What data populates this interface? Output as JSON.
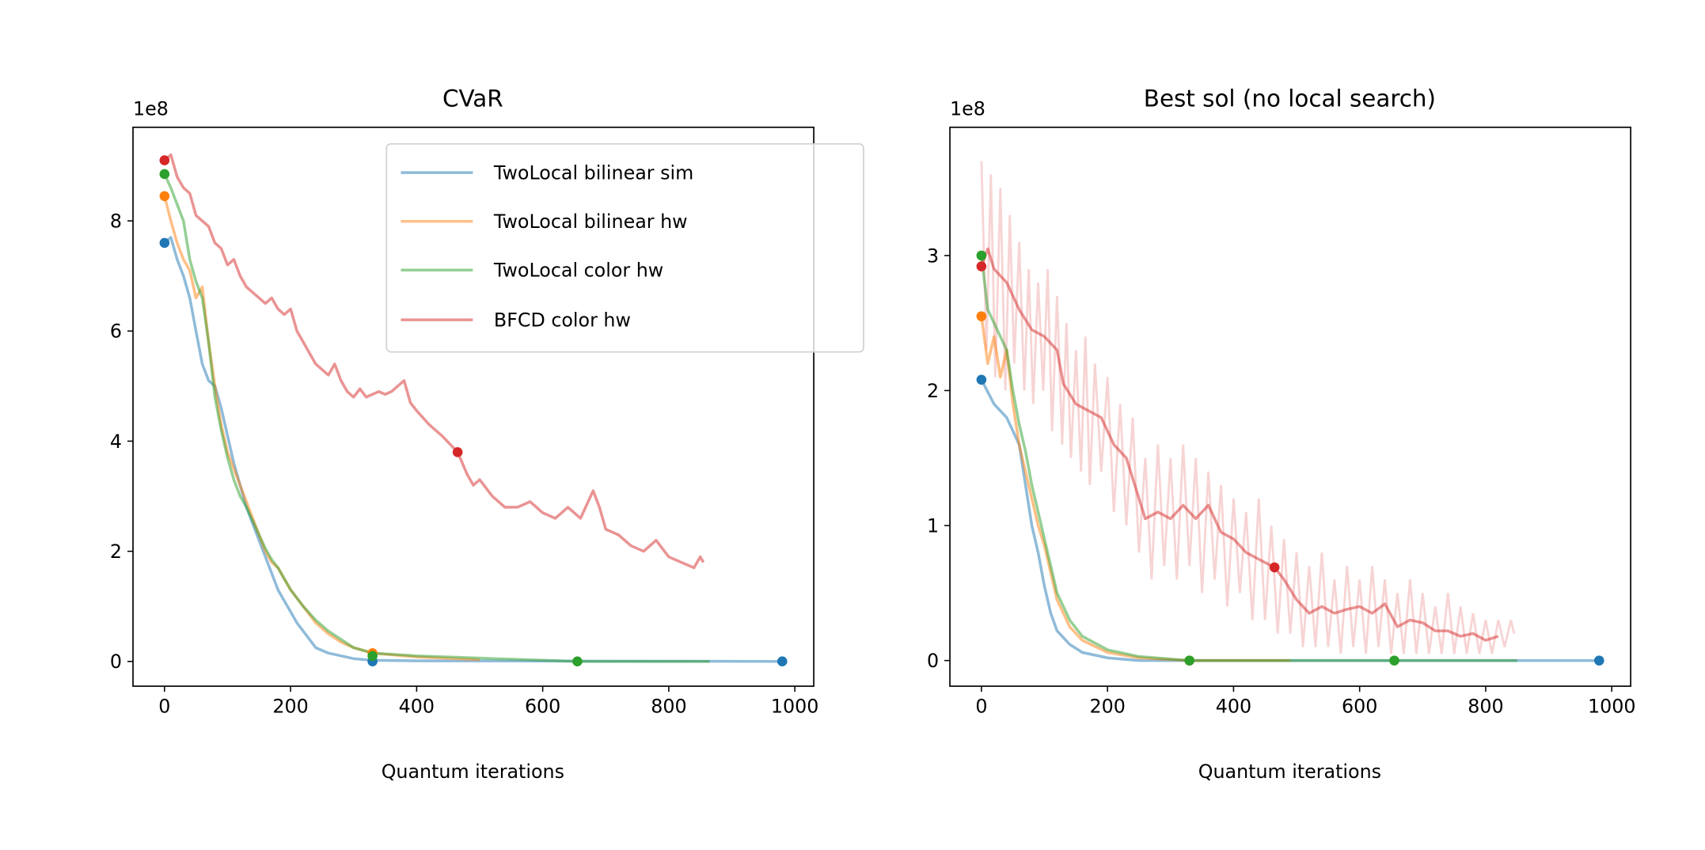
{
  "chart_data": [
    {
      "type": "line",
      "title": "CVaR",
      "xlabel": "Quantum iterations",
      "ylabel": "",
      "y_offset_label": "1e8",
      "xlim": [
        -50,
        1030
      ],
      "ylim": [
        -0.45,
        9.7
      ],
      "xticks": [
        0,
        200,
        400,
        600,
        800,
        1000
      ],
      "yticks": [
        0,
        2,
        4,
        6,
        8
      ],
      "grid": false,
      "legend": {
        "placement": "top-right",
        "entries": [
          "TwoLocal bilinear sim",
          "TwoLocal bilinear hw",
          "TwoLocal color hw",
          "BFCD color hw"
        ]
      },
      "series": [
        {
          "name": "TwoLocal bilinear sim",
          "color": "#1f77b4",
          "x": [
            0,
            10,
            20,
            30,
            40,
            50,
            60,
            70,
            80,
            90,
            100,
            110,
            120,
            130,
            140,
            150,
            160,
            170,
            180,
            190,
            200,
            210,
            220,
            230,
            240,
            250,
            260,
            280,
            300,
            330,
            400,
            980
          ],
          "y": [
            7.6,
            7.7,
            7.3,
            7.0,
            6.6,
            6.0,
            5.4,
            5.1,
            5.0,
            4.6,
            4.1,
            3.6,
            3.2,
            2.8,
            2.5,
            2.2,
            1.9,
            1.6,
            1.3,
            1.1,
            0.9,
            0.7,
            0.55,
            0.4,
            0.25,
            0.2,
            0.15,
            0.1,
            0.05,
            0.02,
            0.01,
            0.0
          ],
          "markers": [
            [
              0,
              7.6
            ],
            [
              330,
              0.0
            ],
            [
              980,
              0.0
            ]
          ]
        },
        {
          "name": "TwoLocal bilinear hw",
          "color": "#ff7f0e",
          "x": [
            0,
            10,
            20,
            30,
            40,
            50,
            60,
            70,
            80,
            90,
            100,
            110,
            120,
            130,
            140,
            150,
            160,
            170,
            180,
            190,
            200,
            220,
            240,
            260,
            280,
            300,
            330,
            400,
            500
          ],
          "y": [
            8.45,
            8.0,
            7.6,
            7.3,
            7.1,
            6.6,
            6.8,
            5.8,
            5.0,
            4.3,
            3.8,
            3.5,
            3.2,
            2.9,
            2.6,
            2.3,
            2.0,
            1.8,
            1.7,
            1.5,
            1.3,
            1.0,
            0.7,
            0.5,
            0.35,
            0.25,
            0.15,
            0.08,
            0.03
          ],
          "markers": [
            [
              0,
              8.45
            ],
            [
              330,
              0.15
            ]
          ]
        },
        {
          "name": "TwoLocal color hw",
          "color": "#2ca02c",
          "x": [
            0,
            10,
            20,
            30,
            40,
            50,
            60,
            70,
            80,
            90,
            100,
            110,
            120,
            130,
            140,
            150,
            160,
            170,
            180,
            190,
            200,
            220,
            240,
            260,
            280,
            300,
            330,
            400,
            500,
            600,
            655,
            865
          ],
          "y": [
            8.85,
            8.6,
            8.3,
            8.0,
            7.3,
            6.9,
            6.6,
            5.8,
            4.8,
            4.2,
            3.7,
            3.3,
            3.0,
            2.8,
            2.55,
            2.3,
            2.05,
            1.85,
            1.7,
            1.5,
            1.3,
            1.0,
            0.75,
            0.55,
            0.4,
            0.25,
            0.15,
            0.1,
            0.06,
            0.02,
            0.0,
            0.0
          ],
          "markers": [
            [
              0,
              8.85
            ],
            [
              330,
              0.1
            ],
            [
              655,
              0.0
            ]
          ]
        },
        {
          "name": "BFCD color hw",
          "color": "#d62728",
          "x": [
            0,
            10,
            20,
            30,
            40,
            50,
            60,
            70,
            80,
            90,
            100,
            110,
            120,
            130,
            140,
            150,
            160,
            170,
            180,
            190,
            200,
            210,
            220,
            230,
            240,
            250,
            260,
            270,
            280,
            290,
            300,
            310,
            320,
            330,
            340,
            350,
            360,
            380,
            390,
            400,
            420,
            440,
            465,
            480,
            490,
            500,
            520,
            540,
            560,
            580,
            600,
            620,
            640,
            660,
            680,
            690,
            700,
            720,
            740,
            760,
            780,
            800,
            820,
            840,
            850,
            855
          ],
          "y": [
            9.1,
            9.2,
            8.8,
            8.6,
            8.5,
            8.1,
            8.0,
            7.9,
            7.6,
            7.5,
            7.2,
            7.3,
            7.0,
            6.8,
            6.7,
            6.6,
            6.5,
            6.6,
            6.4,
            6.3,
            6.4,
            6.0,
            5.8,
            5.6,
            5.4,
            5.3,
            5.2,
            5.4,
            5.1,
            4.9,
            4.8,
            4.95,
            4.8,
            4.85,
            4.9,
            4.85,
            4.9,
            5.1,
            4.7,
            4.55,
            4.3,
            4.1,
            3.8,
            3.4,
            3.2,
            3.3,
            3.0,
            2.8,
            2.8,
            2.9,
            2.7,
            2.6,
            2.8,
            2.6,
            3.1,
            2.8,
            2.4,
            2.3,
            2.1,
            2.0,
            2.2,
            1.9,
            1.8,
            1.7,
            1.9,
            1.8
          ],
          "markers": [
            [
              0,
              9.1
            ],
            [
              465,
              3.8
            ]
          ]
        }
      ]
    },
    {
      "type": "line",
      "title": "Best sol (no local search)",
      "xlabel": "Quantum iterations",
      "ylabel": "",
      "y_offset_label": "1e8",
      "xlim": [
        -50,
        1030
      ],
      "ylim": [
        -0.19,
        3.95
      ],
      "xticks": [
        0,
        200,
        400,
        600,
        800,
        1000
      ],
      "yticks": [
        0,
        1,
        2,
        3
      ],
      "grid": false,
      "series": [
        {
          "name": "TwoLocal bilinear sim",
          "color": "#1f77b4",
          "x": [
            0,
            20,
            40,
            60,
            70,
            80,
            90,
            100,
            110,
            120,
            140,
            160,
            200,
            250,
            980
          ],
          "y": [
            2.08,
            1.9,
            1.8,
            1.6,
            1.3,
            1.0,
            0.8,
            0.55,
            0.35,
            0.22,
            0.12,
            0.06,
            0.02,
            0.0,
            0.0
          ],
          "markers": [
            [
              0,
              2.08
            ],
            [
              980,
              0.0
            ]
          ]
        },
        {
          "name": "TwoLocal bilinear hw",
          "color": "#ff7f0e",
          "x": [
            0,
            10,
            20,
            30,
            40,
            50,
            60,
            70,
            80,
            90,
            100,
            110,
            120,
            140,
            160,
            200,
            250,
            330,
            490
          ],
          "y": [
            2.55,
            2.2,
            2.4,
            2.1,
            2.3,
            1.9,
            1.6,
            1.4,
            1.2,
            1.0,
            0.85,
            0.65,
            0.45,
            0.25,
            0.15,
            0.06,
            0.02,
            0.0,
            0.0
          ],
          "markers": [
            [
              0,
              2.55
            ],
            [
              330,
              0.0
            ]
          ]
        },
        {
          "name": "TwoLocal color hw",
          "color": "#2ca02c",
          "x": [
            0,
            10,
            20,
            30,
            40,
            50,
            60,
            70,
            80,
            90,
            100,
            110,
            120,
            140,
            160,
            200,
            250,
            330,
            850
          ],
          "y": [
            3.0,
            2.6,
            2.5,
            2.4,
            2.3,
            2.0,
            1.75,
            1.55,
            1.3,
            1.1,
            0.9,
            0.7,
            0.5,
            0.3,
            0.18,
            0.08,
            0.03,
            0.0,
            0.0
          ],
          "markers": [
            [
              0,
              3.0
            ],
            [
              330,
              0.0
            ],
            [
              655,
              0.0
            ]
          ]
        },
        {
          "name": "BFCD color hw",
          "color": "#d62728",
          "x": [
            0,
            10,
            20,
            40,
            60,
            80,
            100,
            120,
            130,
            150,
            170,
            190,
            210,
            230,
            250,
            260,
            280,
            300,
            320,
            340,
            360,
            380,
            400,
            420,
            440,
            465,
            480,
            500,
            520,
            540,
            560,
            580,
            600,
            620,
            640,
            660,
            680,
            700,
            720,
            740,
            760,
            780,
            800,
            820
          ],
          "y": [
            2.92,
            3.05,
            2.9,
            2.8,
            2.6,
            2.45,
            2.4,
            2.3,
            2.05,
            1.9,
            1.85,
            1.8,
            1.6,
            1.5,
            1.2,
            1.05,
            1.1,
            1.05,
            1.15,
            1.05,
            1.15,
            0.95,
            0.9,
            0.8,
            0.75,
            0.69,
            0.6,
            0.45,
            0.35,
            0.4,
            0.35,
            0.38,
            0.4,
            0.35,
            0.42,
            0.25,
            0.3,
            0.28,
            0.22,
            0.22,
            0.18,
            0.2,
            0.15,
            0.18
          ],
          "raw_x": [
            0,
            8,
            15,
            22,
            30,
            38,
            45,
            52,
            60,
            68,
            75,
            82,
            90,
            98,
            105,
            112,
            120,
            128,
            135,
            142,
            150,
            158,
            165,
            172,
            180,
            190,
            200,
            210,
            220,
            230,
            240,
            250,
            260,
            270,
            280,
            290,
            300,
            310,
            320,
            330,
            340,
            350,
            360,
            370,
            380,
            390,
            400,
            410,
            420,
            430,
            440,
            450,
            460,
            470,
            480,
            490,
            500,
            510,
            520,
            530,
            540,
            550,
            560,
            570,
            580,
            590,
            600,
            610,
            620,
            630,
            640,
            650,
            660,
            670,
            680,
            690,
            700,
            710,
            720,
            730,
            740,
            750,
            760,
            770,
            780,
            790,
            800,
            810,
            820,
            830,
            840,
            845
          ],
          "raw_y": [
            3.7,
            2.3,
            3.6,
            2.1,
            3.5,
            2.0,
            3.3,
            2.2,
            3.1,
            2.0,
            2.9,
            1.9,
            2.8,
            2.0,
            2.9,
            1.7,
            2.7,
            1.6,
            2.5,
            1.5,
            2.3,
            1.4,
            2.4,
            1.3,
            2.2,
            1.4,
            2.1,
            1.1,
            1.9,
            1.0,
            1.8,
            0.8,
            1.5,
            0.6,
            1.6,
            0.7,
            1.5,
            0.6,
            1.6,
            0.7,
            1.5,
            0.5,
            1.4,
            0.6,
            1.3,
            0.4,
            1.2,
            0.5,
            1.1,
            0.3,
            1.2,
            0.3,
            1.0,
            0.2,
            0.9,
            0.2,
            0.8,
            0.1,
            0.7,
            0.1,
            0.8,
            0.1,
            0.6,
            0.05,
            0.7,
            0.1,
            0.6,
            0.05,
            0.7,
            0.1,
            0.6,
            0.05,
            0.5,
            0.05,
            0.6,
            0.05,
            0.5,
            0.05,
            0.4,
            0.05,
            0.5,
            0.05,
            0.4,
            0.05,
            0.35,
            0.05,
            0.3,
            0.05,
            0.3,
            0.1,
            0.3,
            0.2
          ],
          "markers": [
            [
              0,
              2.92
            ],
            [
              465,
              0.69
            ]
          ]
        }
      ]
    }
  ]
}
